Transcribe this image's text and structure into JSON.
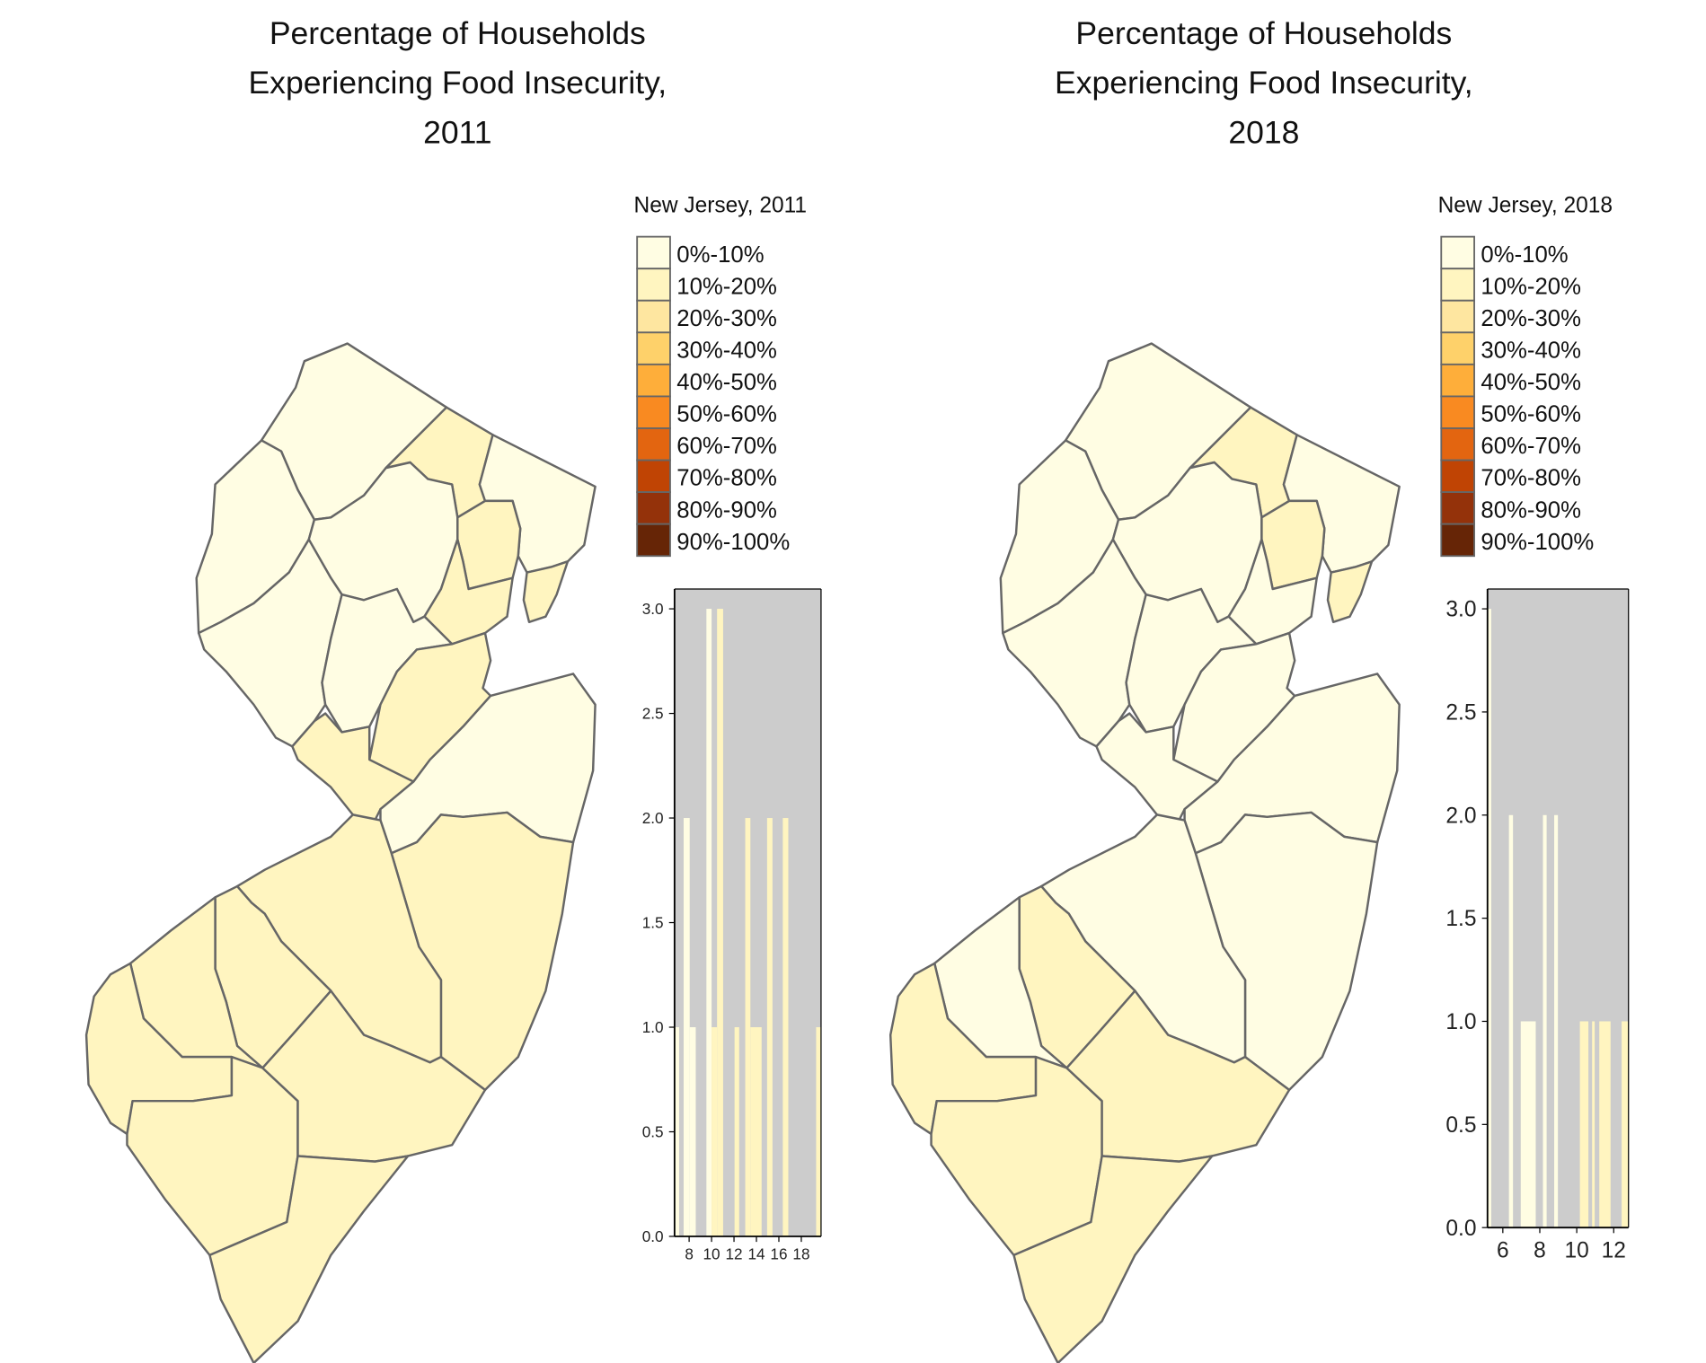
{
  "palette": [
    "#FFFDE3",
    "#FFF5C0",
    "#FEE6A0",
    "#FED16A",
    "#FEAE3A",
    "#F98A21",
    "#E36510",
    "#C04404",
    "#94320A",
    "#662506"
  ],
  "county_stroke": "#666666",
  "hist_background": "#CCCCCC",
  "chart_data": [
    {
      "type": "map",
      "title_lines": [
        "Percentage of Households",
        "Experiencing Food Insecurity,",
        "2011"
      ],
      "legend": {
        "title": "New Jersey, 2011",
        "labels": [
          "0%-10%",
          "10%-20%",
          "20%-30%",
          "30%-40%",
          "40%-50%",
          "50%-60%",
          "60%-70%",
          "70%-80%",
          "80%-90%",
          "90%-100%"
        ],
        "placement": "right"
      },
      "county_class": {
        "sussex": 0,
        "passaic": 1,
        "bergen": 0,
        "warren": 0,
        "morris": 0,
        "essex": 1,
        "hudson": 1,
        "union": 1,
        "hunterdon": 0,
        "somerset": 0,
        "middlesex": 1,
        "mercer": 1,
        "monmouth": 0,
        "ocean": 1,
        "burlington": 1,
        "camden": 1,
        "gloucester": 1,
        "salem": 1,
        "cumberland": 1,
        "atlantic": 1,
        "capemay": 1
      },
      "histogram": {
        "type": "bar",
        "xlim": [
          6.7,
          19.76
        ],
        "ylim": [
          0,
          3.1
        ],
        "xticks": [
          "8",
          "10",
          "12",
          "14",
          "16",
          "18"
        ],
        "yticks": [
          "0.0",
          "0.5",
          "1.0",
          "1.5",
          "2.0",
          "2.5",
          "3.0"
        ],
        "bins": [
          {
            "x0": 6.7,
            "x1": 7.11,
            "count": 1
          },
          {
            "x0": 7.51,
            "x1": 8.05,
            "count": 2
          },
          {
            "x0": 8.05,
            "x1": 8.59,
            "count": 1
          },
          {
            "x0": 9.54,
            "x1": 10.0,
            "count": 3
          },
          {
            "x0": 10.0,
            "x1": 10.49,
            "count": 1
          },
          {
            "x0": 10.49,
            "x1": 11.03,
            "count": 3
          },
          {
            "x0": 12.05,
            "x1": 12.46,
            "count": 1
          },
          {
            "x0": 13.0,
            "x1": 13.46,
            "count": 2
          },
          {
            "x0": 13.46,
            "x1": 14.46,
            "count": 1
          },
          {
            "x0": 14.95,
            "x1": 15.43,
            "count": 2
          },
          {
            "x0": 16.35,
            "x1": 16.84,
            "count": 2
          },
          {
            "x0": 19.32,
            "x1": 19.76,
            "count": 1
          }
        ]
      }
    },
    {
      "type": "map",
      "title_lines": [
        "Percentage of Households",
        "Experiencing Food Insecurity,",
        "2018"
      ],
      "legend": {
        "title": "New Jersey, 2018",
        "labels": [
          "0%-10%",
          "10%-20%",
          "20%-30%",
          "30%-40%",
          "40%-50%",
          "50%-60%",
          "60%-70%",
          "70%-80%",
          "80%-90%",
          "90%-100%"
        ],
        "placement": "right"
      },
      "county_class": {
        "sussex": 0,
        "passaic": 1,
        "bergen": 0,
        "warren": 0,
        "morris": 0,
        "essex": 1,
        "hudson": 1,
        "union": 0,
        "hunterdon": 0,
        "somerset": 0,
        "middlesex": 0,
        "mercer": 0,
        "monmouth": 0,
        "ocean": 0,
        "burlington": 0,
        "camden": 1,
        "gloucester": 0,
        "salem": 1,
        "cumberland": 1,
        "atlantic": 1,
        "capemay": 1
      },
      "histogram": {
        "type": "bar",
        "xlim": [
          5.17,
          12.8
        ],
        "ylim": [
          0,
          3.1
        ],
        "xticks": [
          "6",
          "8",
          "10",
          "12"
        ],
        "yticks": [
          "0.0",
          "0.5",
          "1.0",
          "1.5",
          "2.0",
          "2.5",
          "3.0"
        ],
        "bins": [
          {
            "x0": 5.17,
            "x1": 5.37,
            "count": 3
          },
          {
            "x0": 6.33,
            "x1": 6.55,
            "count": 2
          },
          {
            "x0": 6.97,
            "x1": 7.78,
            "count": 1
          },
          {
            "x0": 8.17,
            "x1": 8.37,
            "count": 2
          },
          {
            "x0": 8.78,
            "x1": 8.98,
            "count": 2
          },
          {
            "x0": 10.17,
            "x1": 10.63,
            "count": 1
          },
          {
            "x0": 10.83,
            "x1": 10.97,
            "count": 1
          },
          {
            "x0": 11.22,
            "x1": 11.83,
            "count": 1
          },
          {
            "x0": 12.43,
            "x1": 12.8,
            "count": 1
          }
        ]
      }
    }
  ]
}
